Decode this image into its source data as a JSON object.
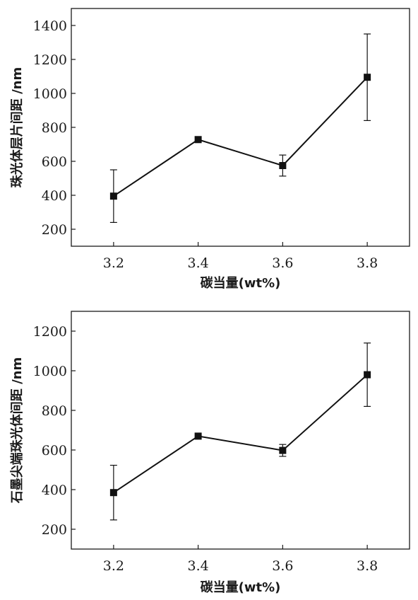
{
  "chart_data": [
    {
      "type": "line",
      "x": [
        3.2,
        3.4,
        3.6,
        3.8
      ],
      "xticks": [
        "3.2",
        "3.4",
        "3.6",
        "3.8"
      ],
      "xlim": [
        3.1,
        3.9
      ],
      "ylim": [
        100,
        1500
      ],
      "yticks": [
        200,
        400,
        600,
        800,
        1000,
        1200,
        1400
      ],
      "xlabel": "碳当量(wt%)",
      "ylabel": "珠光体层片间距 /nm",
      "series": [
        {
          "values": [
            395,
            728,
            575,
            1095
          ],
          "yerr": [
            155,
            0,
            62,
            255
          ]
        }
      ]
    },
    {
      "type": "line",
      "x": [
        3.2,
        3.4,
        3.6,
        3.8
      ],
      "xticks": [
        "3.2",
        "3.4",
        "3.6",
        "3.8"
      ],
      "xlim": [
        3.1,
        3.9
      ],
      "ylim": [
        100,
        1300
      ],
      "yticks": [
        200,
        400,
        600,
        800,
        1000,
        1200
      ],
      "xlabel": "碳当量(wt%)",
      "ylabel": "石墨尖端珠光体间距 /nm",
      "series": [
        {
          "values": [
            385,
            670,
            598,
            980
          ],
          "yerr": [
            138,
            0,
            30,
            160
          ]
        }
      ]
    }
  ]
}
